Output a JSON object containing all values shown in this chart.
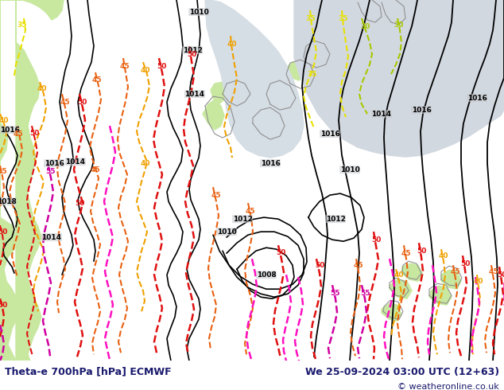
{
  "title_left": "Theta-e 700hPa [hPa] ECMWF",
  "title_right": "We 25-09-2024 03:00 UTC (12+63)",
  "copyright": "© weatheronline.co.uk",
  "bg_gray": "#c8ccd0",
  "green_color": "#c8e8a0",
  "text_color_dark": "#1a1a6e",
  "bottom_bar_color": "#e0e0e0",
  "figsize": [
    6.34,
    4.9
  ],
  "dpi": 100
}
